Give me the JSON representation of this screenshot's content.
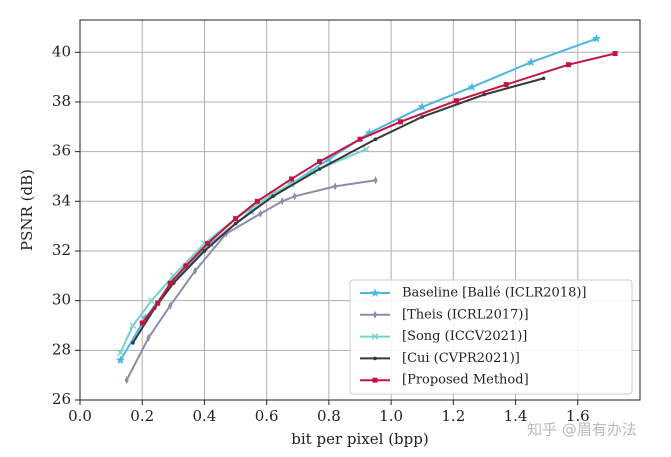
{
  "chart_data": {
    "type": "line",
    "xlabel": "bit per pixel (bpp)",
    "ylabel": "PSNR (dB)",
    "xlim": [
      0,
      1.8
    ],
    "ylim": [
      26,
      41.3
    ],
    "xticks": [
      {
        "value": 0,
        "label": "0.0"
      },
      0.2,
      0.4,
      0.6,
      0.8,
      {
        "value": 1,
        "label": "1.0"
      },
      1.2,
      1.4,
      1.6
    ],
    "yticks": [
      26,
      28,
      30,
      32,
      34,
      36,
      38,
      40
    ],
    "grid": true,
    "legend": "lower right",
    "watermark": "知乎 @眉有办法",
    "series": [
      {
        "name": "Baseline [Ballé (ICLR2018)]",
        "color": "#4cb6e4",
        "marker": "star",
        "x": [
          0.13,
          0.21,
          0.3,
          0.42,
          0.55,
          0.68,
          0.8,
          0.93,
          1.1,
          1.26,
          1.45,
          1.66
        ],
        "values": [
          27.6,
          29.3,
          30.8,
          32.3,
          33.6,
          34.7,
          35.7,
          36.75,
          37.8,
          38.6,
          39.6,
          40.55
        ]
      },
      {
        "name": "[Theis (ICRL2017)]",
        "color": "#8e8cab",
        "marker": "thin-diamond",
        "x": [
          0.15,
          0.22,
          0.29,
          0.37,
          0.47,
          0.58,
          0.65,
          0.69,
          0.82,
          0.95
        ],
        "values": [
          26.8,
          28.5,
          29.8,
          31.2,
          32.7,
          33.5,
          34.0,
          34.2,
          34.6,
          34.85
        ]
      },
      {
        "name": "[Song (ICCV2021)]",
        "color": "#74d3c6",
        "marker": "x",
        "x": [
          0.13,
          0.17,
          0.23,
          0.3,
          0.4,
          0.5,
          0.62,
          0.75,
          0.92
        ],
        "values": [
          27.9,
          29.0,
          30.0,
          31.0,
          32.3,
          33.3,
          34.3,
          35.2,
          36.1
        ]
      },
      {
        "name": "[Cui (CVPR2021)]",
        "color": "#383838",
        "marker": "dot",
        "x": [
          0.17,
          0.24,
          0.3,
          0.4,
          0.5,
          0.62,
          0.77,
          0.95,
          1.1,
          1.3,
          1.49
        ],
        "values": [
          28.3,
          29.7,
          30.7,
          32.0,
          33.1,
          34.2,
          35.3,
          36.5,
          37.4,
          38.3,
          38.95
        ]
      },
      {
        "name": "[Proposed Method]",
        "color": "#c3143f",
        "marker": "square",
        "x": [
          0.2,
          0.25,
          0.29,
          0.34,
          0.41,
          0.5,
          0.57,
          0.68,
          0.77,
          0.9,
          1.03,
          1.21,
          1.37,
          1.57,
          1.72
        ],
        "values": [
          29.1,
          29.9,
          30.7,
          31.4,
          32.3,
          33.3,
          34.0,
          34.9,
          35.6,
          36.5,
          37.2,
          38.05,
          38.7,
          39.5,
          39.95
        ]
      }
    ]
  }
}
